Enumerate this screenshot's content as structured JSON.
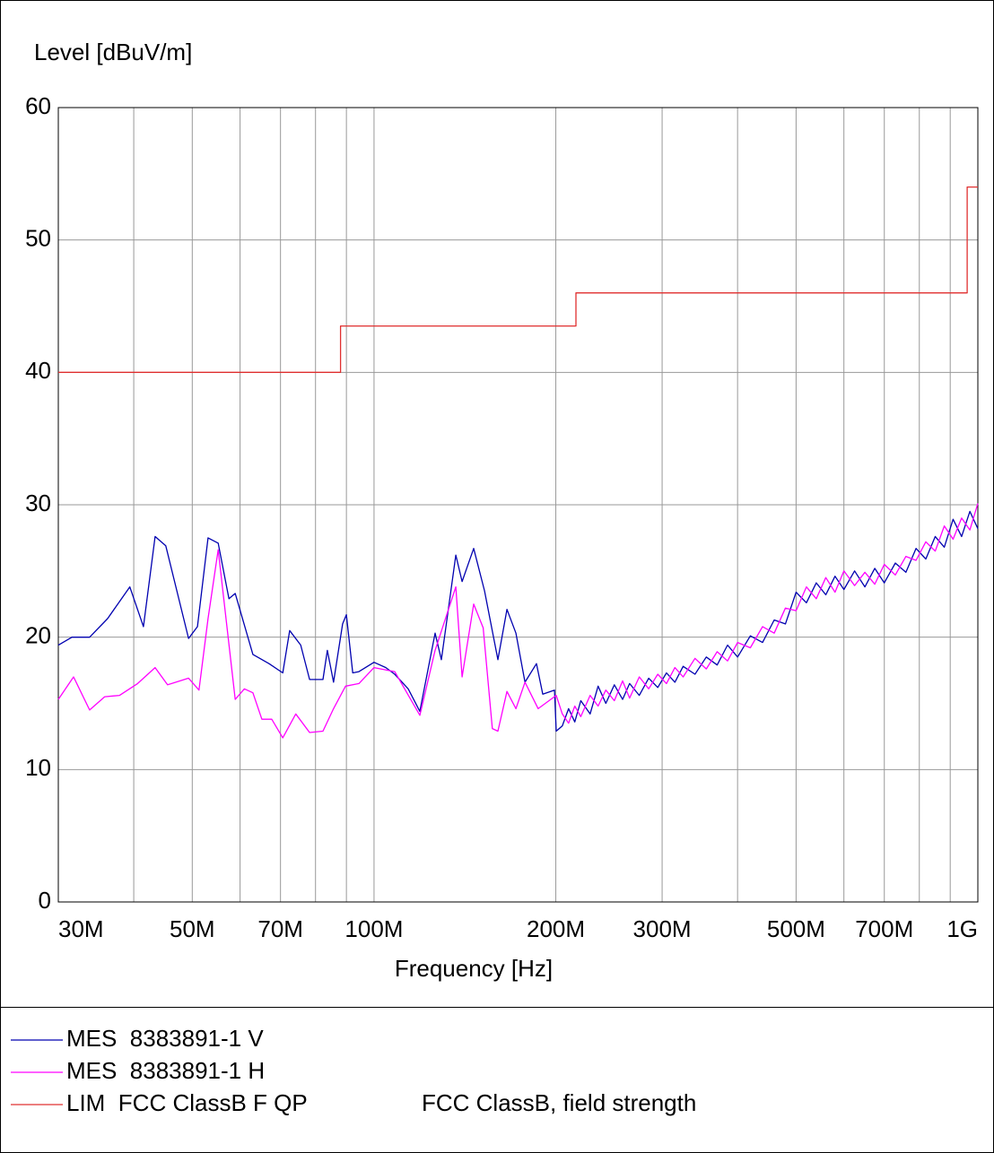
{
  "chart_data": {
    "type": "line",
    "y_label": "Level [dBuV/m]",
    "x_label": "Frequency [Hz]",
    "log_x": true,
    "grid": true,
    "xlim": [
      30000000.0,
      1000000000.0
    ],
    "ylim": [
      0,
      60
    ],
    "yticks": [
      0,
      10,
      20,
      30,
      40,
      50,
      60
    ],
    "xticks": [
      {
        "value": 30000000.0,
        "label": "30M"
      },
      {
        "value": 50000000.0,
        "label": "50M"
      },
      {
        "value": 70000000.0,
        "label": "70M"
      },
      {
        "value": 100000000.0,
        "label": "100M"
      },
      {
        "value": 200000000.0,
        "label": "200M"
      },
      {
        "value": 300000000.0,
        "label": "300M"
      },
      {
        "value": 500000000.0,
        "label": "500M"
      },
      {
        "value": 700000000.0,
        "label": "700M"
      },
      {
        "value": 1000000000.0,
        "label": "1G"
      }
    ],
    "xminor": [
      40000000.0,
      60000000.0,
      80000000.0,
      90000000.0,
      400000000.0,
      600000000.0,
      800000000.0,
      900000000.0
    ],
    "series": [
      {
        "name": "MES  8383891-1 V",
        "color": "#0000b0",
        "x": [
          30000000.0,
          31600000.0,
          33800000.0,
          36200000.0,
          39400000.0,
          41500000.0,
          43400000.0,
          45200000.0,
          49300000.0,
          51000000.0,
          53100000.0,
          55200000.0,
          57500000.0,
          58900000.0,
          63000000.0,
          67000000.0,
          70600000.0,
          72500000.0,
          75600000.0,
          78200000.0,
          82300000.0,
          83700000.0,
          85700000.0,
          88700000.0,
          90000000.0,
          92200000.0,
          94400000.0,
          100000000.0,
          104600000.0,
          108200000.0,
          113900000.0,
          119100000.0,
          126200000.0,
          129300000.0,
          136600000.0,
          139900000.0,
          146200000.0,
          152400000.0,
          160400000.0,
          166000000.0,
          171800000.0,
          177800000.0,
          185800000.0,
          190300000.0,
          199000000.0,
          200300000.0,
          205000000.0,
          210000000.0,
          215000000.0,
          220000000.0,
          228000000.0,
          235000000.0,
          242000000.0,
          250000000.0,
          258000000.0,
          265000000.0,
          275000000.0,
          285000000.0,
          295000000.0,
          305000000.0,
          315000000.0,
          325000000.0,
          340000000.0,
          355000000.0,
          370000000.0,
          385000000.0,
          400000000.0,
          420000000.0,
          440000000.0,
          460000000.0,
          480000000.0,
          500000000.0,
          520000000.0,
          540000000.0,
          560000000.0,
          580000000.0,
          600000000.0,
          625000000.0,
          650000000.0,
          675000000.0,
          700000000.0,
          730000000.0,
          760000000.0,
          790000000.0,
          820000000.0,
          850000000.0,
          880000000.0,
          910000000.0,
          940000000.0,
          970000000.0,
          1000000000.0
        ],
        "values": [
          19.4,
          20,
          20,
          21.4,
          23.8,
          20.8,
          27.6,
          26.9,
          19.9,
          20.8,
          27.5,
          27.1,
          22.9,
          23.3,
          18.7,
          18,
          17.3,
          20.5,
          19.4,
          16.8,
          16.8,
          19,
          16.6,
          21,
          21.7,
          17.3,
          17.4,
          18.1,
          17.7,
          17.2,
          16.1,
          14.4,
          20.3,
          18.3,
          26.2,
          24.2,
          26.7,
          23.5,
          18.3,
          22.1,
          20.3,
          16.6,
          18,
          15.7,
          16,
          12.9,
          13.3,
          14.6,
          13.6,
          15.2,
          14.2,
          16.3,
          15.0,
          16.4,
          15.3,
          16.5,
          15.6,
          16.9,
          16.2,
          17.3,
          16.6,
          17.8,
          17.2,
          18.5,
          17.9,
          19.4,
          18.5,
          20.1,
          19.6,
          21.3,
          21.0,
          23.4,
          22.6,
          24.1,
          23.2,
          24.6,
          23.6,
          25.0,
          23.8,
          25.2,
          24.1,
          25.6,
          24.9,
          26.7,
          25.9,
          27.6,
          26.8,
          28.9,
          27.6,
          29.5,
          28.2
        ]
      },
      {
        "name": "MES  8383891-1 H",
        "color": "#ff00ff",
        "x": [
          30000000.0,
          31800000.0,
          33800000.0,
          35800000.0,
          37900000.0,
          40600000.0,
          43400000.0,
          45500000.0,
          49300000.0,
          51300000.0,
          53100000.0,
          55200000.0,
          58900000.0,
          61000000.0,
          63000000.0,
          65200000.0,
          67700000.0,
          70600000.0,
          74200000.0,
          78200000.0,
          82300000.0,
          85700000.0,
          89700000.0,
          94400000.0,
          100000000.0,
          108200000.0,
          119100000.0,
          126200000.0,
          136600000.0,
          139900000.0,
          146200000.0,
          151600000.0,
          157000000.0,
          160400000.0,
          166000000.0,
          171800000.0,
          177800000.0,
          187000000.0,
          200300000.0,
          205000000.0,
          210000000.0,
          215000000.0,
          220000000.0,
          228000000.0,
          235000000.0,
          242000000.0,
          250000000.0,
          258000000.0,
          265000000.0,
          275000000.0,
          285000000.0,
          295000000.0,
          305000000.0,
          315000000.0,
          325000000.0,
          340000000.0,
          355000000.0,
          370000000.0,
          385000000.0,
          400000000.0,
          420000000.0,
          440000000.0,
          460000000.0,
          480000000.0,
          500000000.0,
          520000000.0,
          540000000.0,
          560000000.0,
          580000000.0,
          600000000.0,
          625000000.0,
          650000000.0,
          675000000.0,
          700000000.0,
          730000000.0,
          760000000.0,
          790000000.0,
          820000000.0,
          850000000.0,
          880000000.0,
          910000000.0,
          940000000.0,
          970000000.0,
          1000000000.0
        ],
        "values": [
          15.3,
          17,
          14.5,
          15.5,
          15.6,
          16.5,
          17.7,
          16.4,
          16.9,
          16,
          21.4,
          26.6,
          15.3,
          16.1,
          15.8,
          13.8,
          13.8,
          12.4,
          14.2,
          12.8,
          12.9,
          14.6,
          16.3,
          16.5,
          17.7,
          17.4,
          14.1,
          19,
          23.8,
          17,
          22.5,
          20.7,
          13.1,
          12.9,
          15.9,
          14.6,
          16.6,
          14.6,
          15.6,
          14.2,
          13.5,
          14.8,
          14.0,
          15.6,
          14.8,
          16.0,
          15.2,
          16.7,
          15.4,
          17.0,
          16.1,
          17.2,
          16.5,
          17.7,
          17.0,
          18.4,
          17.6,
          18.9,
          18.2,
          19.6,
          19.2,
          20.8,
          20.3,
          22.2,
          22.0,
          23.8,
          22.9,
          24.5,
          23.4,
          25.0,
          23.9,
          24.9,
          24.0,
          25.5,
          24.7,
          26.1,
          25.8,
          27.2,
          26.5,
          28.4,
          27.4,
          29.0,
          28.1,
          30.1
        ]
      },
      {
        "name": "LIM  FCC ClassB F QP",
        "description": "FCC ClassB, field strength",
        "color": "#e03030",
        "x": [
          30000000.0,
          88000000.0,
          88000000.0,
          216000000.0,
          216000000.0,
          960000000.0,
          960000000.0,
          1000000000.0
        ],
        "values": [
          40,
          40,
          43.5,
          43.5,
          46,
          46,
          54,
          54
        ]
      }
    ]
  }
}
